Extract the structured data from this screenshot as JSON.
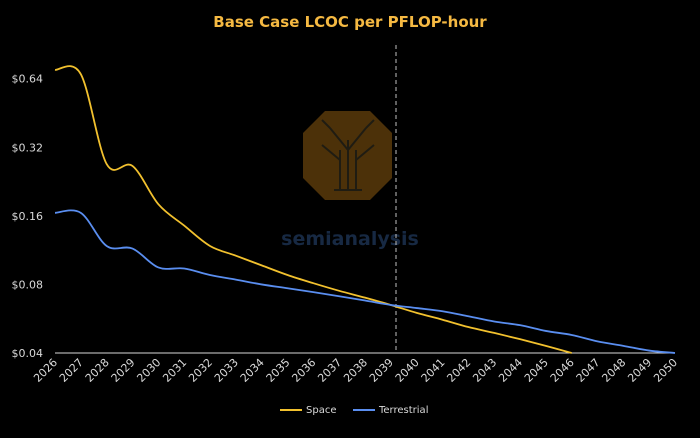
{
  "chart_data": {
    "type": "line",
    "title": "Base Case LCOC per PFLOP-hour",
    "xlabel": "",
    "ylabel": "",
    "x": [
      2026,
      2027,
      2028,
      2029,
      2030,
      2031,
      2032,
      2033,
      2034,
      2035,
      2036,
      2037,
      2038,
      2039,
      2040,
      2041,
      2042,
      2043,
      2044,
      2045,
      2046,
      2047,
      2048,
      2049,
      2050
    ],
    "x_ticks": [
      "2026",
      "2027",
      "2028",
      "2029",
      "2030",
      "2031",
      "2032",
      "2033",
      "2034",
      "2035",
      "2036",
      "2037",
      "2038",
      "2039",
      "2040",
      "2041",
      "2042",
      "2043",
      "2044",
      "2045",
      "2046",
      "2047",
      "2048",
      "2049",
      "2050"
    ],
    "y_scale": "log2",
    "ylim": [
      0.04,
      0.9
    ],
    "y_ticks": [
      0.04,
      0.08,
      0.16,
      0.32,
      0.64
    ],
    "y_tick_labels": [
      "$0.04",
      "$0.08",
      "$0.16",
      "$0.32",
      "$0.64"
    ],
    "series": [
      {
        "name": "Space",
        "color": "#f2c12e",
        "values": [
          0.7,
          0.67,
          0.27,
          0.265,
          0.18,
          0.145,
          0.118,
          0.107,
          0.097,
          0.088,
          0.081,
          0.075,
          0.07,
          0.065,
          0.06,
          0.056,
          0.052,
          0.049,
          0.046,
          0.043,
          0.04,
          null,
          null,
          null,
          null
        ]
      },
      {
        "name": "Terrestrial",
        "color": "#5a8ef0",
        "values": [
          0.165,
          0.165,
          0.118,
          0.115,
          0.095,
          0.094,
          0.088,
          0.084,
          0.08,
          0.077,
          0.074,
          0.071,
          0.068,
          0.065,
          0.063,
          0.061,
          0.058,
          0.055,
          0.053,
          0.05,
          0.048,
          0.045,
          0.043,
          0.041,
          0.039
        ]
      }
    ],
    "vertical_marker": {
      "x": 2039.2,
      "style": "dashed"
    },
    "watermark": "semianalysis",
    "legend": {
      "position": "bottom-center"
    },
    "grid": false
  }
}
